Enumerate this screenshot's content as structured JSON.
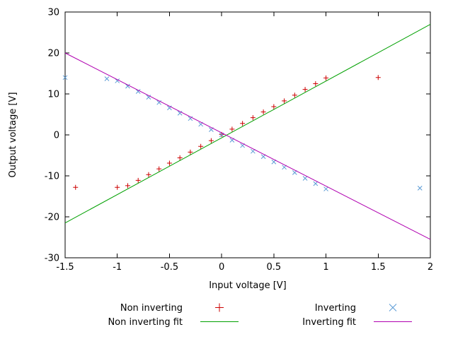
{
  "chart_data": {
    "type": "scatter",
    "title": "",
    "xlabel": "Input voltage [V]",
    "ylabel": "Output voltage [V]",
    "xlim": [
      -1.5,
      2
    ],
    "ylim": [
      -30,
      30
    ],
    "xticks": [
      -1.5,
      -1,
      -0.5,
      0,
      0.5,
      1,
      1.5,
      2
    ],
    "yticks": [
      -30,
      -20,
      -10,
      0,
      10,
      20,
      30
    ],
    "grid": false,
    "legend_position": "below-plot",
    "background_color": "#ffffff",
    "axis_color": "#000000",
    "series": [
      {
        "name": "Non inverting",
        "type": "scatter",
        "marker": "plus",
        "color": "#cc0000",
        "points": [
          [
            -1.4,
            -12.8
          ],
          [
            -1.0,
            -12.8
          ],
          [
            -0.9,
            -12.4
          ],
          [
            -0.8,
            -11.1
          ],
          [
            -0.7,
            -9.7
          ],
          [
            -0.6,
            -8.3
          ],
          [
            -0.5,
            -6.9
          ],
          [
            -0.4,
            -5.6
          ],
          [
            -0.3,
            -4.2
          ],
          [
            -0.2,
            -2.8
          ],
          [
            -0.1,
            -1.4
          ],
          [
            0,
            0.1
          ],
          [
            0.1,
            1.4
          ],
          [
            0.2,
            2.8
          ],
          [
            0.3,
            4.2
          ],
          [
            0.4,
            5.6
          ],
          [
            0.5,
            6.9
          ],
          [
            0.6,
            8.3
          ],
          [
            0.7,
            9.7
          ],
          [
            0.8,
            11.1
          ],
          [
            0.9,
            12.5
          ],
          [
            1.0,
            13.9
          ],
          [
            1.5,
            14.0
          ]
        ]
      },
      {
        "name": "Inverting",
        "type": "scatter",
        "marker": "cross",
        "color": "#5b9bd5",
        "points": [
          [
            -1.5,
            14.0
          ],
          [
            -1.1,
            13.7
          ],
          [
            -1.0,
            13.2
          ],
          [
            -0.9,
            11.9
          ],
          [
            -0.8,
            10.6
          ],
          [
            -0.7,
            9.2
          ],
          [
            -0.6,
            7.9
          ],
          [
            -0.5,
            6.6
          ],
          [
            -0.4,
            5.3
          ],
          [
            -0.3,
            4.0
          ],
          [
            -0.2,
            2.6
          ],
          [
            -0.1,
            1.3
          ],
          [
            0,
            0
          ],
          [
            0.1,
            -1.3
          ],
          [
            0.2,
            -2.6
          ],
          [
            0.3,
            -4.0
          ],
          [
            0.4,
            -5.3
          ],
          [
            0.5,
            -6.6
          ],
          [
            0.6,
            -7.9
          ],
          [
            0.7,
            -9.2
          ],
          [
            0.8,
            -10.6
          ],
          [
            0.9,
            -11.9
          ],
          [
            1.0,
            -13.2
          ],
          [
            1.9,
            -13.0
          ]
        ]
      },
      {
        "name": "Non inverting fit",
        "type": "line",
        "color": "#00a000",
        "slope": 13.86,
        "intercept": -0.7,
        "points": [
          [
            -1.5,
            -21.5
          ],
          [
            2,
            27.0
          ]
        ]
      },
      {
        "name": "Inverting fit",
        "type": "line",
        "color": "#b000b0",
        "slope": -13.0,
        "intercept": 0.5,
        "points": [
          [
            -1.5,
            20.0
          ],
          [
            2,
            -25.5
          ]
        ]
      }
    ]
  }
}
